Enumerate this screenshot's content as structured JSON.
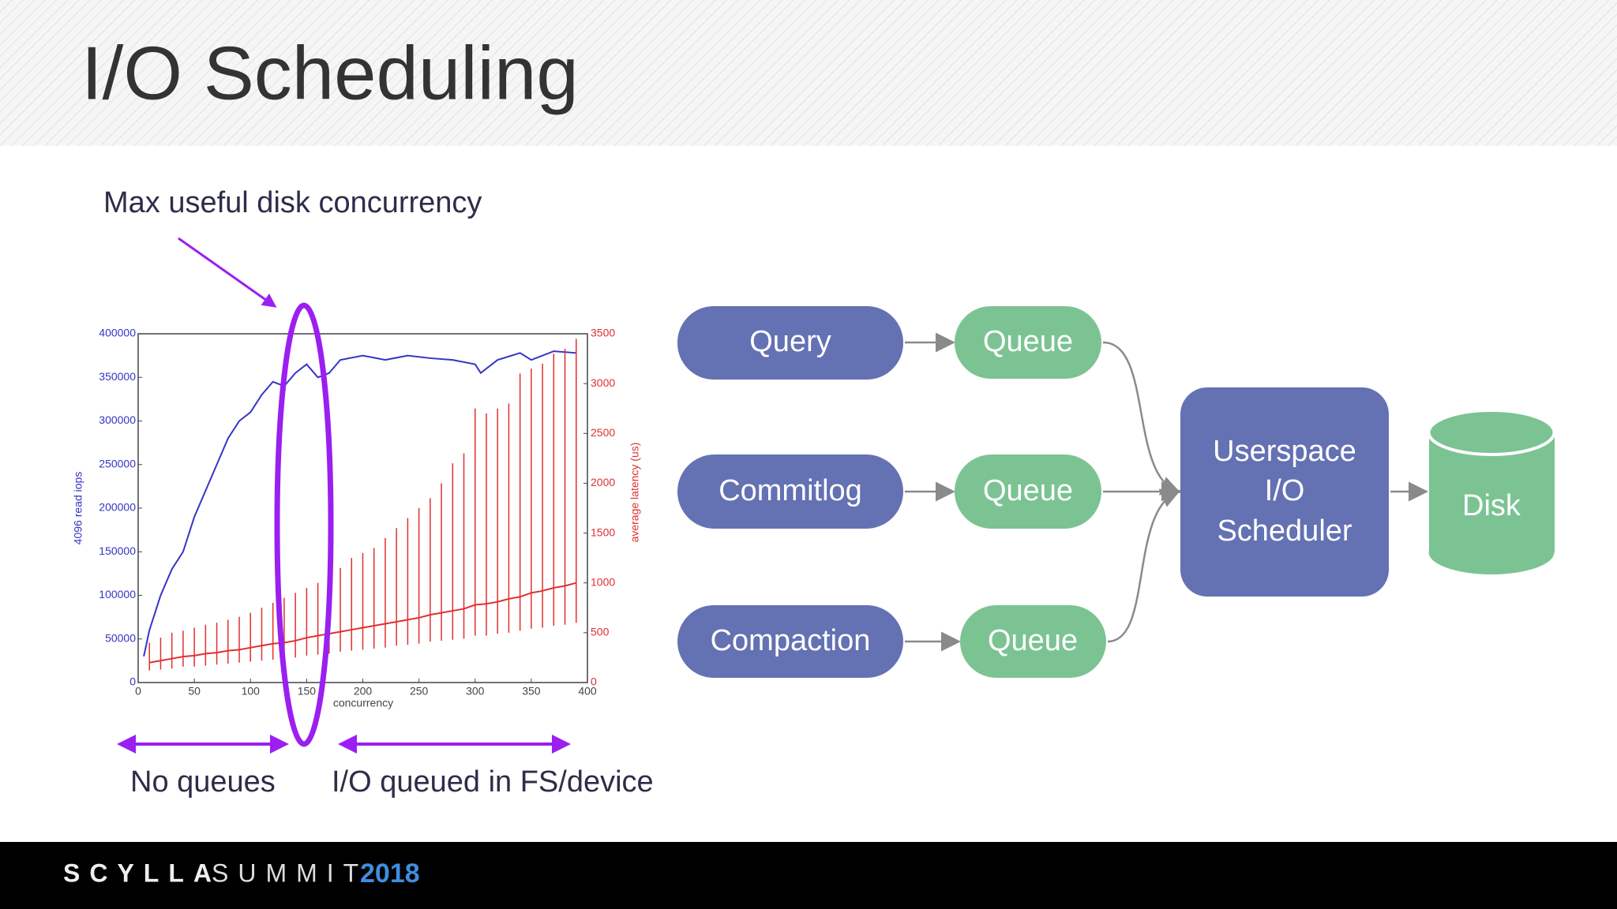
{
  "header": {
    "title": "I/O Scheduling"
  },
  "annotations": {
    "max_concurrency": "Max useful disk concurrency",
    "no_queues": "No queues",
    "queued": "I/O queued in FS/device"
  },
  "chart_data": {
    "type": "line",
    "xlabel": "concurrency",
    "ylabel": "4096 read iops",
    "y2label": "average latency (us)",
    "xlim": [
      0,
      400
    ],
    "xticks": [
      0,
      50,
      100,
      150,
      200,
      250,
      300,
      350,
      400
    ],
    "ylim": [
      0,
      400000
    ],
    "yticks": [
      0,
      50000,
      100000,
      150000,
      200000,
      250000,
      300000,
      350000,
      400000
    ],
    "y2lim": [
      0,
      3500
    ],
    "y2ticks": [
      0,
      500,
      1000,
      1500,
      2000,
      2500,
      3000,
      3500
    ],
    "series": [
      {
        "name": "4096 read iops",
        "color": "#3434c8",
        "axis": "y",
        "x": [
          5,
          10,
          20,
          30,
          40,
          50,
          60,
          70,
          80,
          90,
          100,
          110,
          120,
          130,
          140,
          150,
          160,
          170,
          180,
          200,
          220,
          240,
          260,
          280,
          300,
          305,
          320,
          340,
          350,
          370,
          390
        ],
        "values": [
          30000,
          60000,
          100000,
          130000,
          150000,
          190000,
          220000,
          250000,
          280000,
          300000,
          310000,
          330000,
          345000,
          340000,
          355000,
          365000,
          350000,
          355000,
          370000,
          375000,
          370000,
          375000,
          372000,
          370000,
          365000,
          355000,
          370000,
          378000,
          370000,
          380000,
          378000
        ]
      },
      {
        "name": "average latency (us)",
        "color": "#e03030",
        "axis": "y2",
        "x": [
          10,
          20,
          30,
          40,
          50,
          60,
          70,
          80,
          90,
          100,
          110,
          120,
          130,
          140,
          150,
          160,
          170,
          180,
          190,
          200,
          210,
          220,
          230,
          240,
          250,
          260,
          270,
          280,
          290,
          300,
          310,
          320,
          330,
          340,
          350,
          360,
          370,
          380,
          390
        ],
        "values": [
          200,
          220,
          240,
          260,
          270,
          290,
          300,
          320,
          330,
          350,
          370,
          390,
          400,
          420,
          450,
          470,
          490,
          510,
          530,
          550,
          570,
          590,
          610,
          630,
          650,
          680,
          700,
          720,
          740,
          780,
          790,
          810,
          840,
          860,
          900,
          920,
          950,
          970,
          1000
        ],
        "low": [
          120,
          130,
          140,
          160,
          160,
          170,
          180,
          190,
          200,
          210,
          220,
          230,
          240,
          250,
          270,
          280,
          290,
          310,
          320,
          330,
          340,
          350,
          370,
          380,
          390,
          410,
          420,
          430,
          440,
          470,
          470,
          490,
          500,
          520,
          540,
          550,
          570,
          580,
          600
        ],
        "high": [
          400,
          450,
          500,
          520,
          550,
          580,
          600,
          630,
          660,
          700,
          750,
          800,
          850,
          900,
          950,
          1000,
          1050,
          1150,
          1250,
          1300,
          1350,
          1450,
          1550,
          1650,
          1750,
          1850,
          2000,
          2200,
          2300,
          2750,
          2700,
          2750,
          2800,
          3100,
          3150,
          3200,
          3300,
          3350,
          3450
        ]
      }
    ]
  },
  "diagram": {
    "nodes": [
      {
        "label": "Query"
      },
      {
        "label": "Queue"
      },
      {
        "label": "Commitlog"
      },
      {
        "label": "Queue"
      },
      {
        "label": "Compaction"
      },
      {
        "label": "Queue"
      },
      {
        "lines": [
          "Userspace",
          "I/O",
          "Scheduler"
        ]
      },
      {
        "label": "Disk"
      }
    ]
  },
  "footer": {
    "brand_1": "SCYLLA",
    "brand_2": "SUMMIT",
    "year": "2018"
  }
}
